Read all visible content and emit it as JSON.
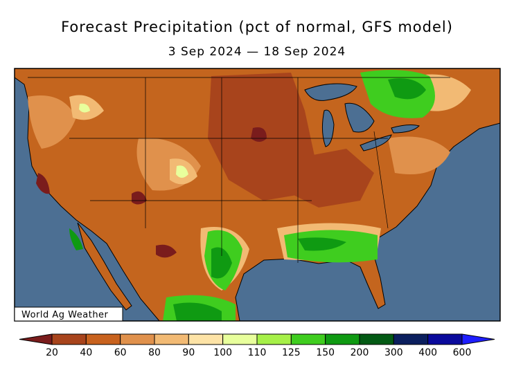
{
  "title": "Forecast Precipitation (pct of normal, GFS model)",
  "subtitle": "3 Sep 2024 — 18 Sep 2024",
  "credit": "World Ag Weather",
  "legend": {
    "colors": [
      "#7a1c1c",
      "#a8441c",
      "#c8621e",
      "#e0914c",
      "#f2ba74",
      "#fde3a6",
      "#e8ff9c",
      "#a6f048",
      "#3fcd1f",
      "#0f9a12",
      "#035a14",
      "#0b1f5e",
      "#0a0a9c",
      "#1e1eff"
    ],
    "labels": [
      20,
      40,
      60,
      80,
      90,
      100,
      110,
      125,
      150,
      200,
      300,
      400,
      600
    ]
  }
}
